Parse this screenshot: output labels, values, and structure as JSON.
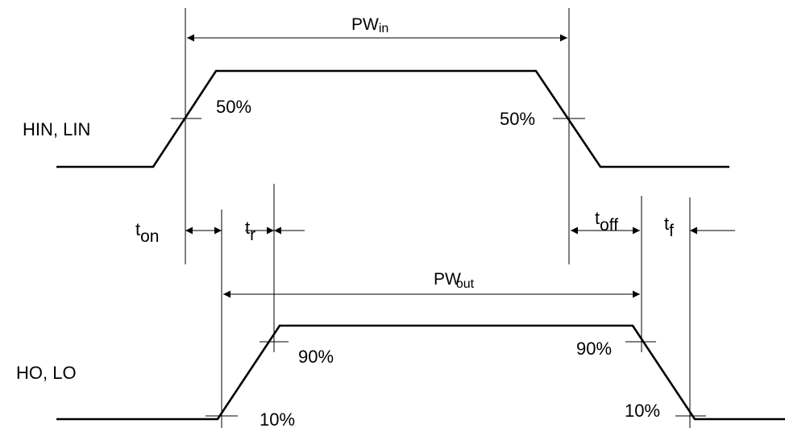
{
  "signals": {
    "input_label": "HIN, LIN",
    "output_label": "HO, LO"
  },
  "thresholds": {
    "in_rise": "50%",
    "in_fall": "50%",
    "out_rise_high": "90%",
    "out_fall_high": "90%",
    "out_rise_low": "10%",
    "out_fall_low": "10%"
  },
  "pulse_widths": {
    "input_main": "PW",
    "input_sub": "in",
    "output_main": "PW",
    "output_sub": "out"
  },
  "timings": {
    "on_main": "t",
    "on_sub": "on",
    "rise_main": "t",
    "rise_sub": "r",
    "off_main": "t",
    "off_sub": "off",
    "fall_main": "t",
    "fall_sub": "f"
  },
  "colors": {
    "line": "#000000",
    "background": "#ffffff"
  }
}
